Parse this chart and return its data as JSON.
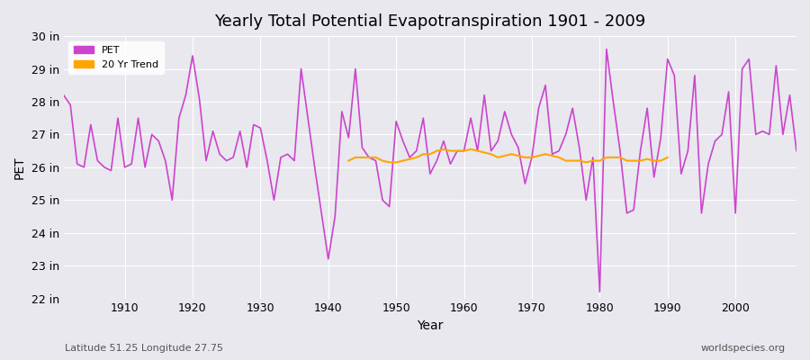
{
  "title": "Yearly Total Potential Evapotranspiration 1901 - 2009",
  "xlabel": "Year",
  "ylabel": "PET",
  "subtitle_left": "Latitude 51.25 Longitude 27.75",
  "subtitle_right": "worldspecies.org",
  "ylim": [
    22,
    30
  ],
  "yticks": [
    22,
    23,
    24,
    25,
    26,
    27,
    28,
    29,
    30
  ],
  "ytick_labels": [
    "22 in",
    "23 in",
    "24 in",
    "25 in",
    "26 in",
    "27 in",
    "28 in",
    "29 in",
    "30 in"
  ],
  "xticks": [
    1910,
    1920,
    1930,
    1940,
    1950,
    1960,
    1970,
    1980,
    1990,
    2000
  ],
  "pet_color": "#CC44CC",
  "trend_color": "#FFA500",
  "bg_color": "#E8E8EE",
  "plot_bg": "#E8E8EE",
  "grid_color": "#FFFFFF",
  "years": [
    1901,
    1902,
    1903,
    1904,
    1905,
    1906,
    1907,
    1908,
    1909,
    1910,
    1911,
    1912,
    1913,
    1914,
    1915,
    1916,
    1917,
    1918,
    1919,
    1920,
    1921,
    1922,
    1923,
    1924,
    1925,
    1926,
    1927,
    1928,
    1929,
    1930,
    1931,
    1932,
    1933,
    1934,
    1935,
    1936,
    1937,
    1938,
    1939,
    1940,
    1941,
    1942,
    1943,
    1944,
    1945,
    1946,
    1947,
    1948,
    1949,
    1950,
    1951,
    1952,
    1953,
    1954,
    1955,
    1956,
    1957,
    1958,
    1959,
    1960,
    1961,
    1962,
    1963,
    1964,
    1965,
    1966,
    1967,
    1968,
    1969,
    1970,
    1971,
    1972,
    1973,
    1974,
    1975,
    1976,
    1977,
    1978,
    1979,
    1980,
    1981,
    1982,
    1983,
    1984,
    1985,
    1986,
    1987,
    1988,
    1989,
    1990,
    1991,
    1992,
    1993,
    1994,
    1995,
    1996,
    1997,
    1998,
    1999,
    2000,
    2001,
    2002,
    2003,
    2004,
    2005,
    2006,
    2007,
    2008,
    2009
  ],
  "pet_values": [
    28.2,
    27.9,
    26.1,
    26.0,
    27.3,
    26.2,
    26.0,
    25.9,
    27.5,
    26.0,
    26.1,
    27.5,
    26.0,
    27.0,
    26.8,
    26.2,
    25.0,
    27.5,
    28.2,
    29.4,
    28.1,
    26.2,
    27.1,
    26.4,
    26.2,
    26.3,
    27.1,
    26.0,
    27.3,
    27.2,
    26.2,
    25.0,
    26.3,
    26.4,
    26.2,
    29.0,
    27.5,
    26.0,
    24.6,
    23.2,
    24.5,
    27.7,
    26.9,
    29.0,
    26.6,
    26.3,
    26.2,
    25.0,
    24.8,
    27.4,
    26.8,
    26.3,
    26.5,
    27.5,
    25.8,
    26.2,
    26.8,
    26.1,
    26.5,
    26.5,
    27.5,
    26.5,
    28.2,
    26.5,
    26.8,
    27.7,
    27.0,
    26.6,
    25.5,
    26.3,
    27.8,
    28.5,
    26.4,
    26.5,
    27.0,
    27.8,
    26.6,
    25.0,
    26.3,
    22.2,
    29.6,
    28.0,
    26.5,
    24.6,
    24.7,
    26.5,
    27.8,
    25.7,
    26.9,
    29.3,
    28.8,
    25.8,
    26.5,
    28.8,
    24.6,
    26.1,
    26.8,
    27.0,
    28.3,
    24.6,
    29.0,
    29.3,
    27.0,
    27.1,
    27.0,
    29.1,
    27.0,
    28.2,
    26.5
  ],
  "trend_values": {
    "1943": 26.2,
    "1944": 26.3,
    "1945": 26.3,
    "1946": 26.3,
    "1947": 26.3,
    "1948": 26.2,
    "1949": 26.15,
    "1950": 26.15,
    "1951": 26.2,
    "1952": 26.25,
    "1953": 26.3,
    "1954": 26.4,
    "1955": 26.4,
    "1956": 26.5,
    "1957": 26.55,
    "1958": 26.5,
    "1959": 26.5,
    "1960": 26.5,
    "1961": 26.55,
    "1962": 26.5,
    "1963": 26.45,
    "1964": 26.4,
    "1965": 26.3,
    "1966": 26.35,
    "1967": 26.4,
    "1968": 26.35,
    "1969": 26.3,
    "1970": 26.3,
    "1971": 26.35,
    "1972": 26.4,
    "1973": 26.35,
    "1974": 26.3,
    "1975": 26.2,
    "1976": 26.2,
    "1977": 26.2,
    "1978": 26.15,
    "1979": 26.2,
    "1980": 26.2,
    "1981": 26.3,
    "1982": 26.3,
    "1983": 26.3,
    "1984": 26.2,
    "1985": 26.2,
    "1986": 26.2,
    "1987": 26.25,
    "1988": 26.2,
    "1989": 26.2,
    "1990": 26.3
  },
  "legend_pet_label": "PET",
  "legend_trend_label": "20 Yr Trend"
}
